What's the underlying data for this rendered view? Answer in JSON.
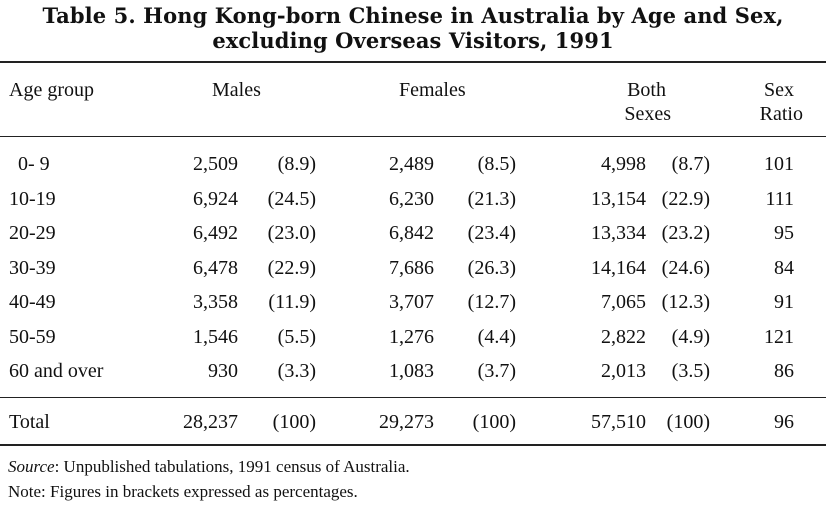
{
  "title_line1": "Table 5.  Hong Kong-born Chinese in Australia by Age and Sex,",
  "title_line2": "excluding Overseas Visitors, 1991",
  "headers": {
    "age_group": "Age group",
    "males": "Males",
    "females": "Females",
    "both_line1": "Both",
    "both_line2": "Sexes",
    "ratio_line1": "Sex",
    "ratio_line2": "Ratio"
  },
  "rows": [
    {
      "age": "0- 9",
      "m": "2,509",
      "mp": "(8.9)",
      "f": "2,489",
      "fp": "(8.5)",
      "b": "4,998",
      "bp": "(8.7)",
      "sr": "101"
    },
    {
      "age": "10-19",
      "m": "6,924",
      "mp": "(24.5)",
      "f": "6,230",
      "fp": "(21.3)",
      "b": "13,154",
      "bp": "(22.9)",
      "sr": "111"
    },
    {
      "age": "20-29",
      "m": "6,492",
      "mp": "(23.0)",
      "f": "6,842",
      "fp": "(23.4)",
      "b": "13,334",
      "bp": "(23.2)",
      "sr": "95"
    },
    {
      "age": "30-39",
      "m": "6,478",
      "mp": "(22.9)",
      "f": "7,686",
      "fp": "(26.3)",
      "b": "14,164",
      "bp": "(24.6)",
      "sr": "84"
    },
    {
      "age": "40-49",
      "m": "3,358",
      "mp": "(11.9)",
      "f": "3,707",
      "fp": "(12.7)",
      "b": "7,065",
      "bp": "(12.3)",
      "sr": "91"
    },
    {
      "age": "50-59",
      "m": "1,546",
      "mp": "(5.5)",
      "f": "1,276",
      "fp": "(4.4)",
      "b": "2,822",
      "bp": "(4.9)",
      "sr": "121"
    },
    {
      "age": "60 and over",
      "m": "930",
      "mp": "(3.3)",
      "f": "1,083",
      "fp": "(3.7)",
      "b": "2,013",
      "bp": "(3.5)",
      "sr": "86"
    }
  ],
  "total": {
    "age": "Total",
    "m": "28,237",
    "mp": "(100)",
    "f": "29,273",
    "fp": "(100)",
    "b": "57,510",
    "bp": "(100)",
    "sr": "96"
  },
  "source_label": "Source",
  "source_text": ": Unpublished tabulations, 1991 census of Australia.",
  "note_text": "Note: Figures in brackets expressed as percentages."
}
